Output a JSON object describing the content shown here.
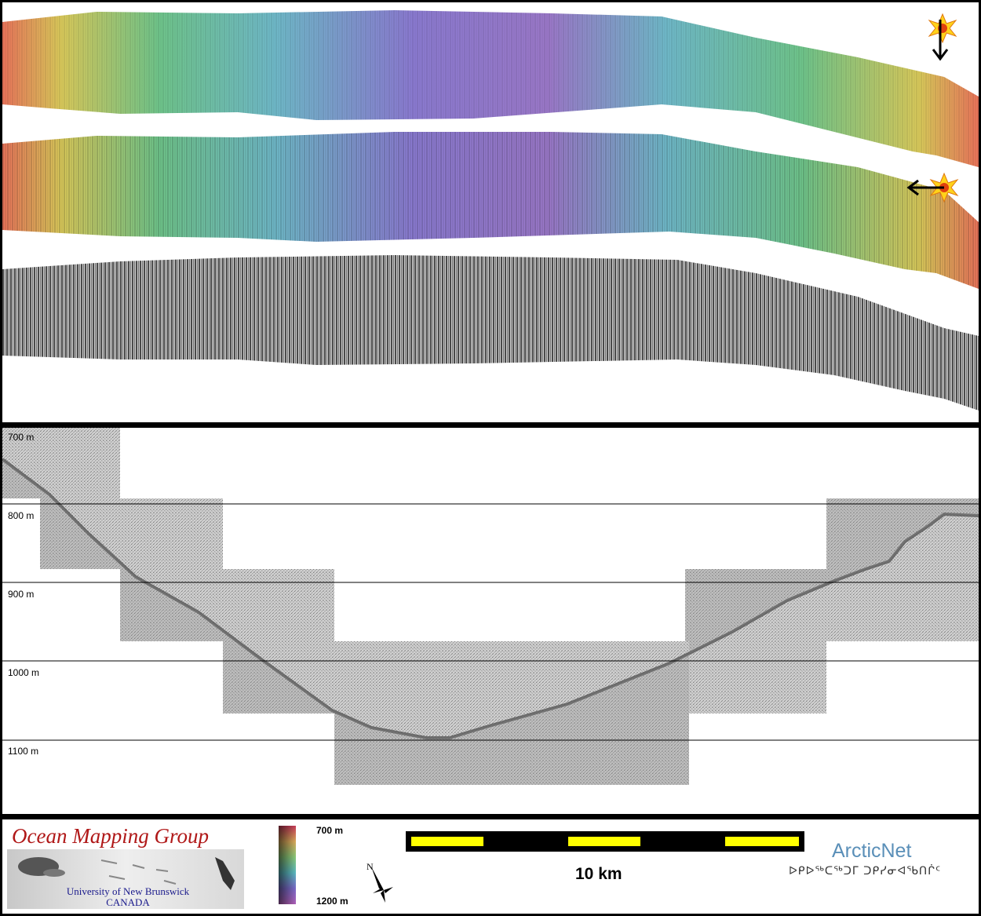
{
  "profile": {
    "depth_labels": [
      "700 m",
      "800 m",
      "900 m",
      "1000 m",
      "1100 m"
    ]
  },
  "legend": {
    "colorbar_top": "700 m",
    "colorbar_bottom": "1200 m",
    "scale_label": "10 km",
    "compass_letter": "N"
  },
  "logos": {
    "omg_title": "Ocean Mapping Group",
    "omg_university": "University of New Brunswick",
    "omg_country": "CANADA",
    "arcticnet_title": "ArcticNet",
    "arcticnet_subtitle": "ᐅᑭᐅᖅᑕᖅᑐᒥ ᑐᑭᓯᓂᐊᖃᑎᒌᑦ"
  },
  "colors": {
    "bathy_shallow": "#e8735a",
    "bathy_mid_yellow": "#d8c85a",
    "bathy_green": "#6fc48a",
    "bathy_cyan": "#6fb8c8",
    "bathy_deep": "#8a7ad0",
    "scalebar_yellow": "#ffff00",
    "omg_red": "#b01818",
    "arcticnet_blue": "#5a8fb8"
  }
}
